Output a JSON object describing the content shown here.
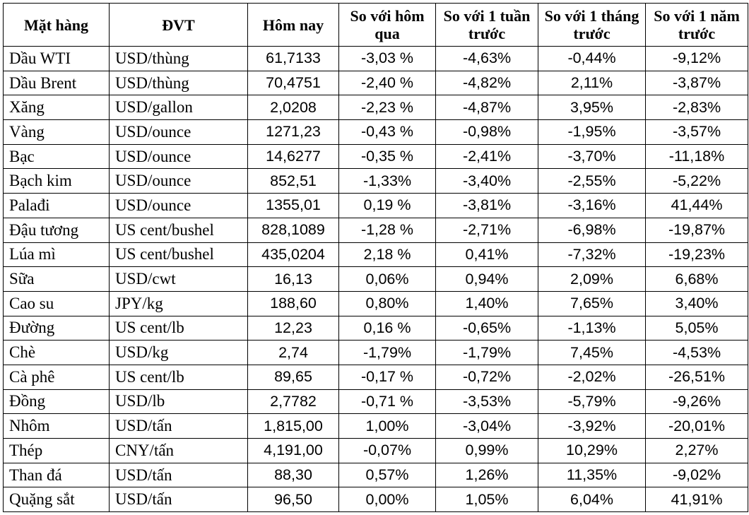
{
  "headers": [
    "Mặt hàng",
    "ĐVT",
    "Hôm nay",
    "So với hôm qua",
    "So với 1 tuần trước",
    "So với 1 tháng trước",
    "So với 1 năm trước"
  ],
  "rows": [
    [
      "Dầu WTI",
      "USD/thùng",
      "61,7133",
      "-3,03 %",
      "-4,63%",
      "-0,44%",
      "-9,12%"
    ],
    [
      "Dầu Brent",
      "USD/thùng",
      "70,4751",
      "-2,40 %",
      "-4,82%",
      "2,11%",
      "-3,87%"
    ],
    [
      "Xăng",
      "USD/gallon",
      "2,0208",
      "-2,23 %",
      "-4,87%",
      "3,95%",
      "-2,83%"
    ],
    [
      "Vàng",
      "USD/ounce",
      "1271,23",
      "-0,43 %",
      "-0,98%",
      "-1,95%",
      "-3,57%"
    ],
    [
      "Bạc",
      "USD/ounce",
      "14,6277",
      "-0,35 %",
      "-2,41%",
      "-3,70%",
      "-11,18%"
    ],
    [
      "Bạch kim",
      "USD/ounce",
      "852,51",
      "-1,33%",
      "-3,40%",
      "-2,55%",
      "-5,22%"
    ],
    [
      "Palađi",
      "USD/ounce",
      "1355,01",
      "0,19 %",
      "-3,81%",
      "-3,16%",
      "41,44%"
    ],
    [
      "Đậu tương",
      "US cent/bushel",
      "828,1089",
      "-1,28 %",
      "-2,71%",
      "-6,98%",
      "-19,87%"
    ],
    [
      "Lúa mì",
      "US cent/bushel",
      "435,0204",
      "2,18 %",
      "0,41%",
      "-7,32%",
      "-19,23%"
    ],
    [
      "Sữa",
      "USD/cwt",
      "16,13",
      "0,06%",
      "0,94%",
      "2,09%",
      "6,68%"
    ],
    [
      "Cao su",
      "JPY/kg",
      "188,60",
      "0,80%",
      "1,40%",
      "7,65%",
      "3,40%"
    ],
    [
      "Đường",
      "US cent/lb",
      "12,23",
      "0,16 %",
      "-0,65%",
      "-1,13%",
      "5,05%"
    ],
    [
      "Chè",
      "USD/kg",
      "2,74",
      "-1,79%",
      "-1,79%",
      "7,45%",
      "-4,53%"
    ],
    [
      "Cà phê",
      "US cent/lb",
      "89,65",
      "-0,17 %",
      "-0,72%",
      "-2,02%",
      "-26,51%"
    ],
    [
      "Đồng",
      "USD/lb",
      "2,7782",
      "-0,71 %",
      "-3,53%",
      "-5,79%",
      "-9,26%"
    ],
    [
      "Nhôm",
      "USD/tấn",
      "1,815,00",
      "1,00%",
      "-3,04%",
      "-3,92%",
      "-20,01%"
    ],
    [
      "Thép",
      "CNY/tấn",
      "4,191,00",
      "-0,07%",
      "0,99%",
      "10,29%",
      "2,27%"
    ],
    [
      "Than đá",
      "USD/tấn",
      "88,30",
      "0,57%",
      "1,26%",
      "11,35%",
      "-9,02%"
    ],
    [
      "Quặng sắt",
      "USD/tấn",
      "96,50",
      "0,00%",
      "1,05%",
      "6,04%",
      "41,91%"
    ]
  ]
}
